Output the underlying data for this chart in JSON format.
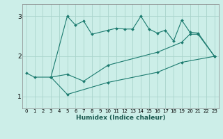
{
  "xlabel": "Humidex (Indice chaleur)",
  "bg_color": "#cceee8",
  "grid_color": "#aad4cc",
  "line_color": "#1a7a6e",
  "x_values": [
    0,
    1,
    2,
    3,
    4,
    5,
    6,
    7,
    8,
    9,
    10,
    11,
    12,
    13,
    14,
    15,
    16,
    17,
    18,
    19,
    20,
    21,
    22,
    23
  ],
  "x_top": [
    0,
    1,
    3,
    5,
    6,
    7,
    8,
    10,
    11,
    12,
    13,
    14,
    15,
    16,
    17,
    18,
    19,
    20,
    21,
    23
  ],
  "y_top": [
    1.58,
    1.48,
    1.48,
    3.0,
    2.78,
    2.88,
    2.55,
    2.65,
    2.7,
    2.68,
    2.68,
    3.0,
    2.68,
    2.58,
    2.65,
    2.38,
    2.9,
    2.6,
    2.58,
    2.0
  ],
  "x_mid": [
    3,
    5,
    7,
    10,
    16,
    19,
    20,
    21,
    23
  ],
  "y_mid": [
    1.48,
    1.55,
    1.38,
    1.78,
    2.1,
    2.35,
    2.55,
    2.55,
    2.0
  ],
  "x_bot": [
    3,
    5,
    10,
    16,
    19,
    23
  ],
  "y_bot": [
    1.48,
    1.05,
    1.35,
    1.6,
    1.85,
    2.0
  ],
  "ylim": [
    0.7,
    3.3
  ],
  "yticks": [
    1,
    2,
    3
  ],
  "xlim": [
    -0.5,
    23.5
  ]
}
